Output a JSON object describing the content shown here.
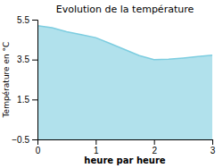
{
  "chart_data": {
    "type": "area",
    "title": "Evolution de la température",
    "xlabel": "heure par heure",
    "ylabel": "Température en °C",
    "x": [
      0,
      0.25,
      0.5,
      0.75,
      1.0,
      1.25,
      1.5,
      1.75,
      2.0,
      2.25,
      2.5,
      2.75,
      3.0
    ],
    "values": [
      5.2,
      5.1,
      4.9,
      4.75,
      4.6,
      4.3,
      4.0,
      3.7,
      3.5,
      3.52,
      3.58,
      3.65,
      3.72
    ],
    "color": "#7dcde0",
    "xlim": [
      0,
      3
    ],
    "ylim": [
      -0.5,
      5.5
    ],
    "xticks": [
      0,
      1,
      2,
      3
    ],
    "yticks": [
      {
        "value": -0.5,
        "label": "−0.5"
      },
      1.5,
      3.5,
      5.5
    ]
  }
}
